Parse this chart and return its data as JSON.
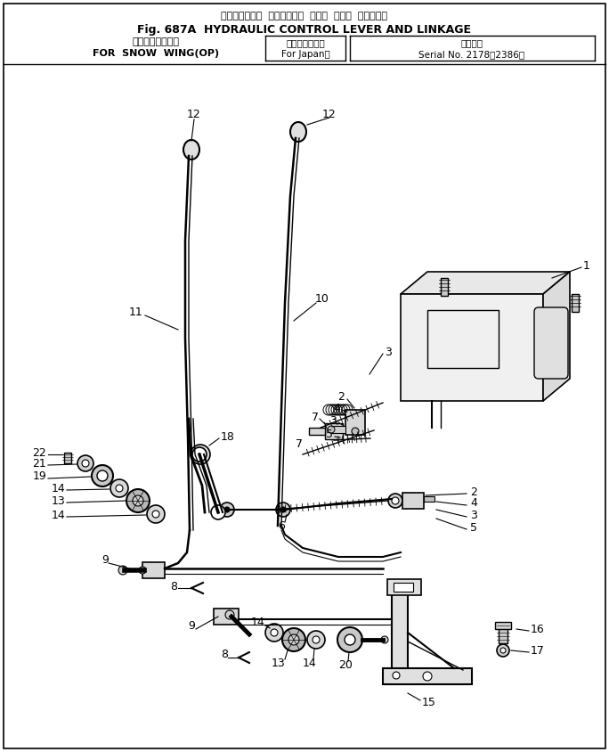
{
  "fig_width": 6.84,
  "fig_height": 8.44,
  "bg_color": "#ffffff",
  "title_j": "ハイドロリック  コントロール  レバー  および  リンケージ",
  "title_e": "Fig. 687A  HYDRAULIC CONTROL LEVER AND LINKAGE",
  "sub_j1": "スノウウィング用",
  "sub_j2": "（国　内　向）",
  "sub_j3": "適用号機",
  "sub_e1": "FOR  SNOW  WING(OP)",
  "sub_e2": "For Japan）",
  "sub_e3": "Serial No. 2178～2386）"
}
